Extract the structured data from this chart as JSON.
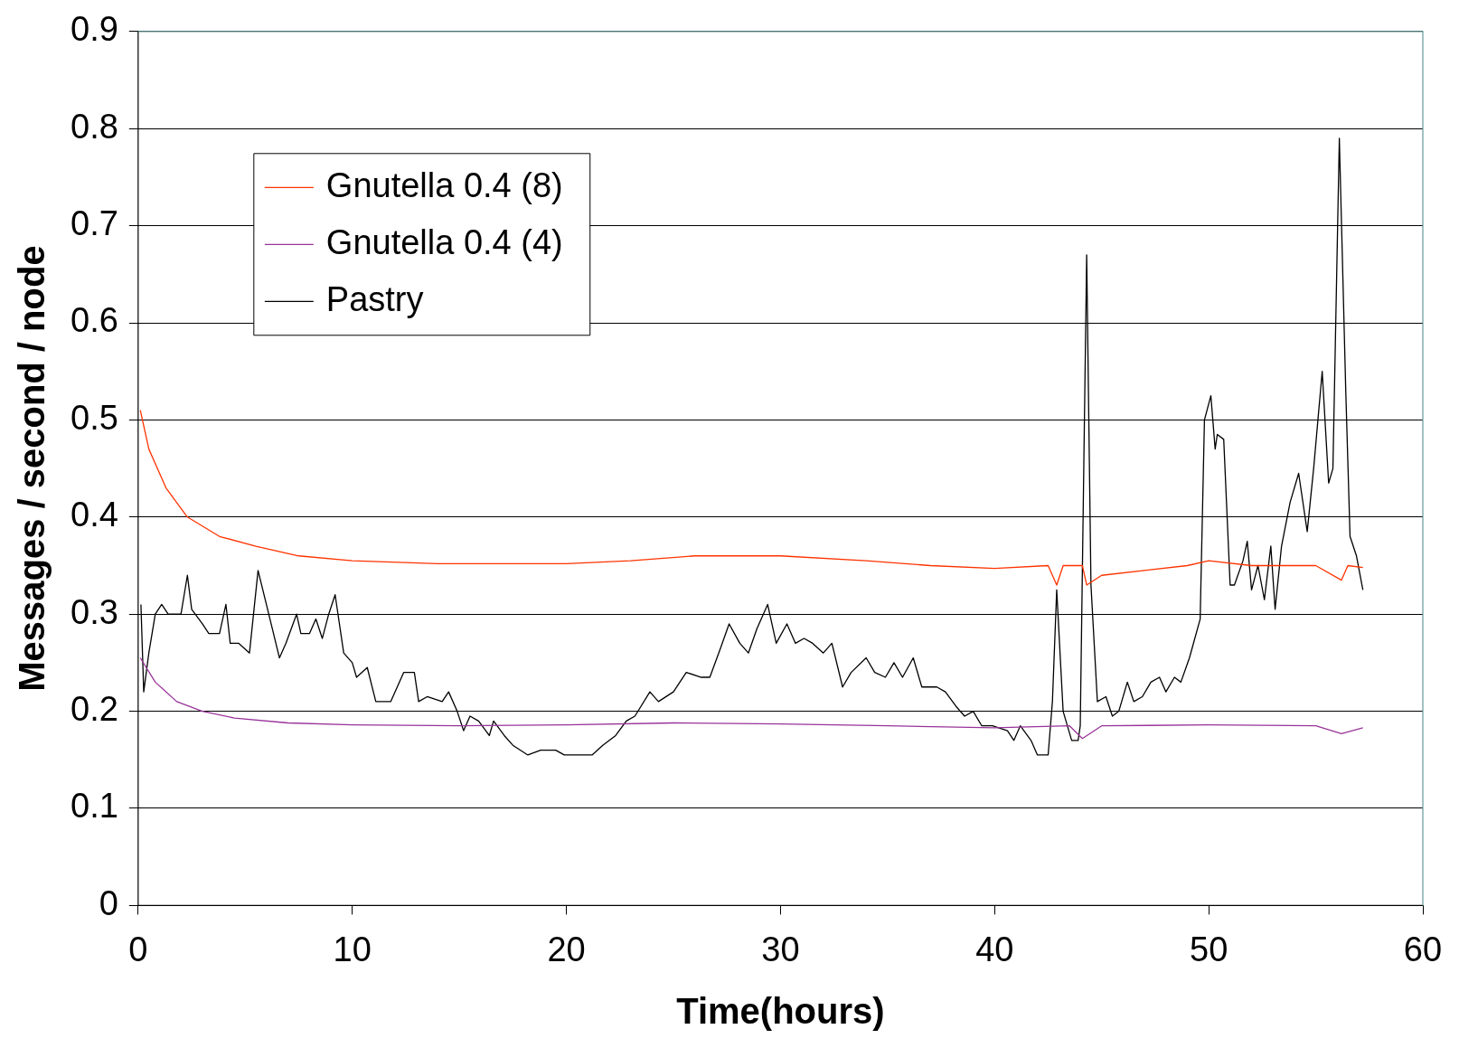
{
  "chart_data": {
    "type": "line",
    "xlabel": "Time(hours)",
    "ylabel": "Messages / second / node",
    "xlim": [
      0,
      60
    ],
    "xticks": [
      0,
      10,
      20,
      30,
      40,
      50,
      60
    ],
    "ylim": [
      0,
      0.9
    ],
    "yticks": [
      0,
      0.1,
      0.2,
      0.3,
      0.4,
      0.5,
      0.6,
      0.7,
      0.8,
      0.9
    ],
    "grid": "y",
    "legend": "top left",
    "marker": "none",
    "line_style": "solid",
    "series": [
      {
        "name": "Gnutella 0.4 (8)",
        "color": "#ff3300",
        "x": [
          0.1,
          0.5,
          1.3,
          2.3,
          3.8,
          5.5,
          7.5,
          10,
          14,
          20,
          23,
          26,
          30,
          34,
          37,
          40,
          42.5,
          42.9,
          43.2,
          44.1,
          44.3,
          45,
          47,
          49,
          50,
          52,
          55,
          56.2,
          56.5,
          57.2
        ],
        "values": [
          0.51,
          0.47,
          0.43,
          0.4,
          0.38,
          0.37,
          0.36,
          0.355,
          0.352,
          0.352,
          0.355,
          0.36,
          0.36,
          0.355,
          0.35,
          0.347,
          0.35,
          0.33,
          0.35,
          0.35,
          0.33,
          0.34,
          0.345,
          0.35,
          0.355,
          0.35,
          0.35,
          0.335,
          0.35,
          0.348
        ]
      },
      {
        "name": "Gnutella 0.4 (4)",
        "color": "#993399",
        "x": [
          0.1,
          0.8,
          1.8,
          3,
          4.5,
          7,
          10,
          15,
          20,
          25,
          30,
          35,
          40,
          43.5,
          44.1,
          45,
          50,
          55,
          56.2,
          57.2
        ],
        "values": [
          0.255,
          0.23,
          0.21,
          0.2,
          0.193,
          0.188,
          0.186,
          0.185,
          0.186,
          0.188,
          0.187,
          0.185,
          0.183,
          0.185,
          0.172,
          0.185,
          0.186,
          0.185,
          0.177,
          0.183
        ]
      },
      {
        "name": "Pastry",
        "color": "#000000",
        "x": [
          0.13,
          0.26,
          0.5,
          0.8,
          1.1,
          1.4,
          1.7,
          2.0,
          2.3,
          2.5,
          3.0,
          3.3,
          3.8,
          4.1,
          4.3,
          4.7,
          5.2,
          5.6,
          6.1,
          6.6,
          6.9,
          7.4,
          7.6,
          8.0,
          8.3,
          8.6,
          8.9,
          9.2,
          9.6,
          10.0,
          10.2,
          10.7,
          11.1,
          11.8,
          12.4,
          12.9,
          13.1,
          13.5,
          14.2,
          14.5,
          14.9,
          15.2,
          15.5,
          15.9,
          16.4,
          16.6,
          17.1,
          17.5,
          18.2,
          18.8,
          19.5,
          19.9,
          20.6,
          21.2,
          21.7,
          22.3,
          22.8,
          23.2,
          23.9,
          24.3,
          25.0,
          25.6,
          26.3,
          26.7,
          27.2,
          27.6,
          28.1,
          28.5,
          28.9,
          29.4,
          29.8,
          30.3,
          30.7,
          31.1,
          31.5,
          32.0,
          32.4,
          32.9,
          33.3,
          34.0,
          34.4,
          34.9,
          35.3,
          35.7,
          36.2,
          36.6,
          37.3,
          37.7,
          38.2,
          38.6,
          39.0,
          39.4,
          39.9,
          40.6,
          40.9,
          41.2,
          41.7,
          42.0,
          42.5,
          42.7,
          42.9,
          43.2,
          43.6,
          43.9,
          44.0,
          44.3,
          44.5,
          44.8,
          45.2,
          45.5,
          45.8,
          46.2,
          46.5,
          46.9,
          47.3,
          47.7,
          48.0,
          48.4,
          48.7,
          49.1,
          49.6,
          49.8,
          50.1,
          50.3,
          50.4,
          50.7,
          51.0,
          51.2,
          51.6,
          51.8,
          52.0,
          52.3,
          52.6,
          52.9,
          53.1,
          53.4,
          53.8,
          54.2,
          54.6,
          54.9,
          55.1,
          55.3,
          55.6,
          55.8,
          56.1,
          56.4,
          56.6,
          56.9,
          57.2
        ],
        "values": [
          0.31,
          0.22,
          0.26,
          0.3,
          0.31,
          0.3,
          0.3,
          0.3,
          0.34,
          0.305,
          0.29,
          0.28,
          0.28,
          0.31,
          0.27,
          0.27,
          0.26,
          0.345,
          0.3,
          0.255,
          0.27,
          0.3,
          0.28,
          0.28,
          0.295,
          0.275,
          0.3,
          0.32,
          0.26,
          0.25,
          0.235,
          0.245,
          0.21,
          0.21,
          0.24,
          0.24,
          0.21,
          0.215,
          0.21,
          0.22,
          0.2,
          0.18,
          0.195,
          0.19,
          0.175,
          0.19,
          0.175,
          0.165,
          0.155,
          0.16,
          0.16,
          0.155,
          0.155,
          0.155,
          0.165,
          0.175,
          0.19,
          0.195,
          0.22,
          0.21,
          0.22,
          0.24,
          0.235,
          0.235,
          0.265,
          0.29,
          0.27,
          0.26,
          0.285,
          0.31,
          0.27,
          0.29,
          0.27,
          0.275,
          0.27,
          0.26,
          0.27,
          0.225,
          0.24,
          0.255,
          0.24,
          0.235,
          0.25,
          0.235,
          0.255,
          0.225,
          0.225,
          0.22,
          0.205,
          0.195,
          0.2,
          0.185,
          0.185,
          0.18,
          0.17,
          0.185,
          0.17,
          0.155,
          0.155,
          0.21,
          0.325,
          0.2,
          0.17,
          0.17,
          0.185,
          0.67,
          0.33,
          0.21,
          0.215,
          0.195,
          0.2,
          0.23,
          0.21,
          0.215,
          0.23,
          0.235,
          0.22,
          0.235,
          0.23,
          0.255,
          0.295,
          0.5,
          0.525,
          0.47,
          0.485,
          0.48,
          0.33,
          0.33,
          0.355,
          0.375,
          0.325,
          0.35,
          0.315,
          0.37,
          0.305,
          0.37,
          0.415,
          0.445,
          0.385,
          0.45,
          0.5,
          0.55,
          0.435,
          0.45,
          0.79,
          0.53,
          0.38,
          0.36,
          0.325
        ]
      }
    ]
  }
}
